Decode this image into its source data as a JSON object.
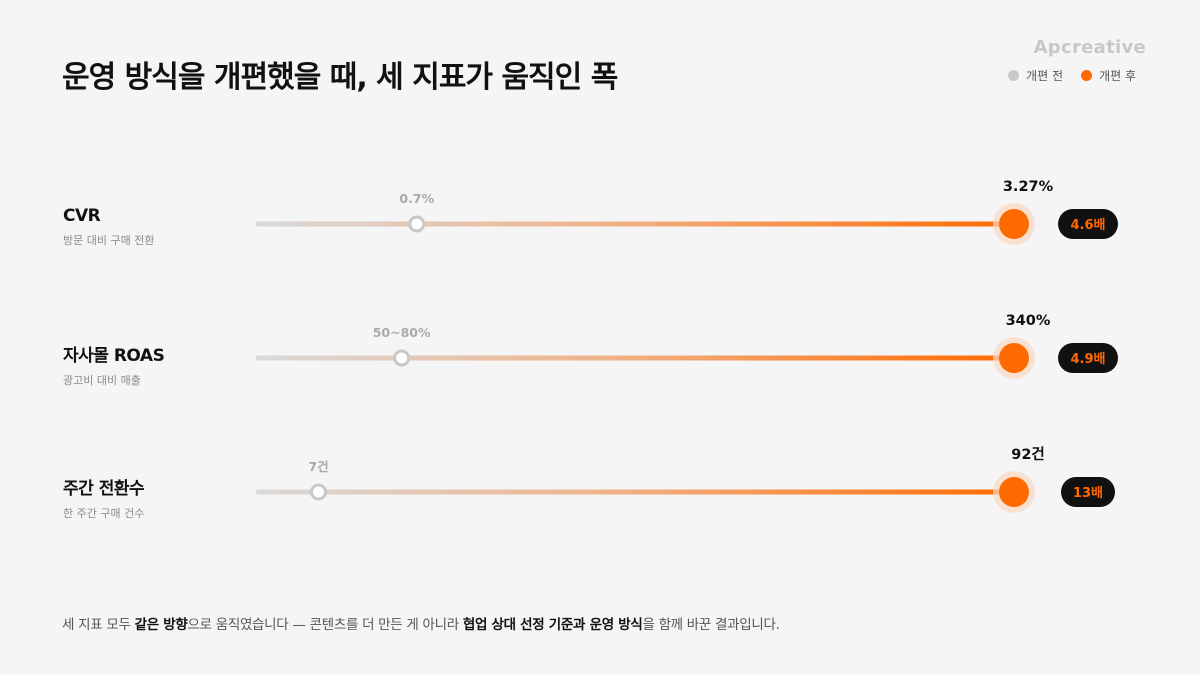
{
  "title": "운영 방식을 개편했을 때, 세 지표가 움직인 폭",
  "brand": "Apcreative",
  "legend": [
    {
      "label": "개편 전",
      "color": "#c8c8c8"
    },
    {
      "label": "개편 후",
      "color": "#ff6a00"
    }
  ],
  "chart_data": {
    "type": "dumbbell",
    "series": [
      "개편 전",
      "개편 후"
    ],
    "rows": [
      {
        "name": "CVR",
        "sub": "방문 대비 구매 전환",
        "before_label": "0.7%",
        "before_value": 0.7,
        "after_label": "3.27%",
        "after_value": 3.27,
        "multiplier": "4.6배",
        "before_fraction": 0.21
      },
      {
        "name": "자사몰 ROAS",
        "sub": "광고비 대비 매출",
        "before_label": "50~80%",
        "before_value": 65,
        "after_label": "340%",
        "after_value": 340,
        "multiplier": "4.9배",
        "before_fraction": 0.19
      },
      {
        "name": "주간 전환수",
        "sub": "한 주간 구매 건수",
        "before_label": "7건",
        "before_value": 7,
        "after_label": "92건",
        "after_value": 92,
        "multiplier": "13배",
        "before_fraction": 0.08
      }
    ],
    "colors": {
      "before": "#c8c8c8",
      "after": "#ff6a00",
      "track_start": "#d9d9d9",
      "badge_bg": "#111111",
      "badge_text": "#ff6a00"
    }
  },
  "footnote": {
    "parts": [
      {
        "text": "세 지표 모두 ",
        "bold": false
      },
      {
        "text": "같은 방향",
        "bold": true
      },
      {
        "text": "으로 움직였습니다 — 콘텐츠를 더 만든 게 아니라 ",
        "bold": false
      },
      {
        "text": "협업 상대 선정 기준과 운영 방식",
        "bold": true
      },
      {
        "text": "을 함께 바꾼 결과입니다.",
        "bold": false
      }
    ]
  }
}
